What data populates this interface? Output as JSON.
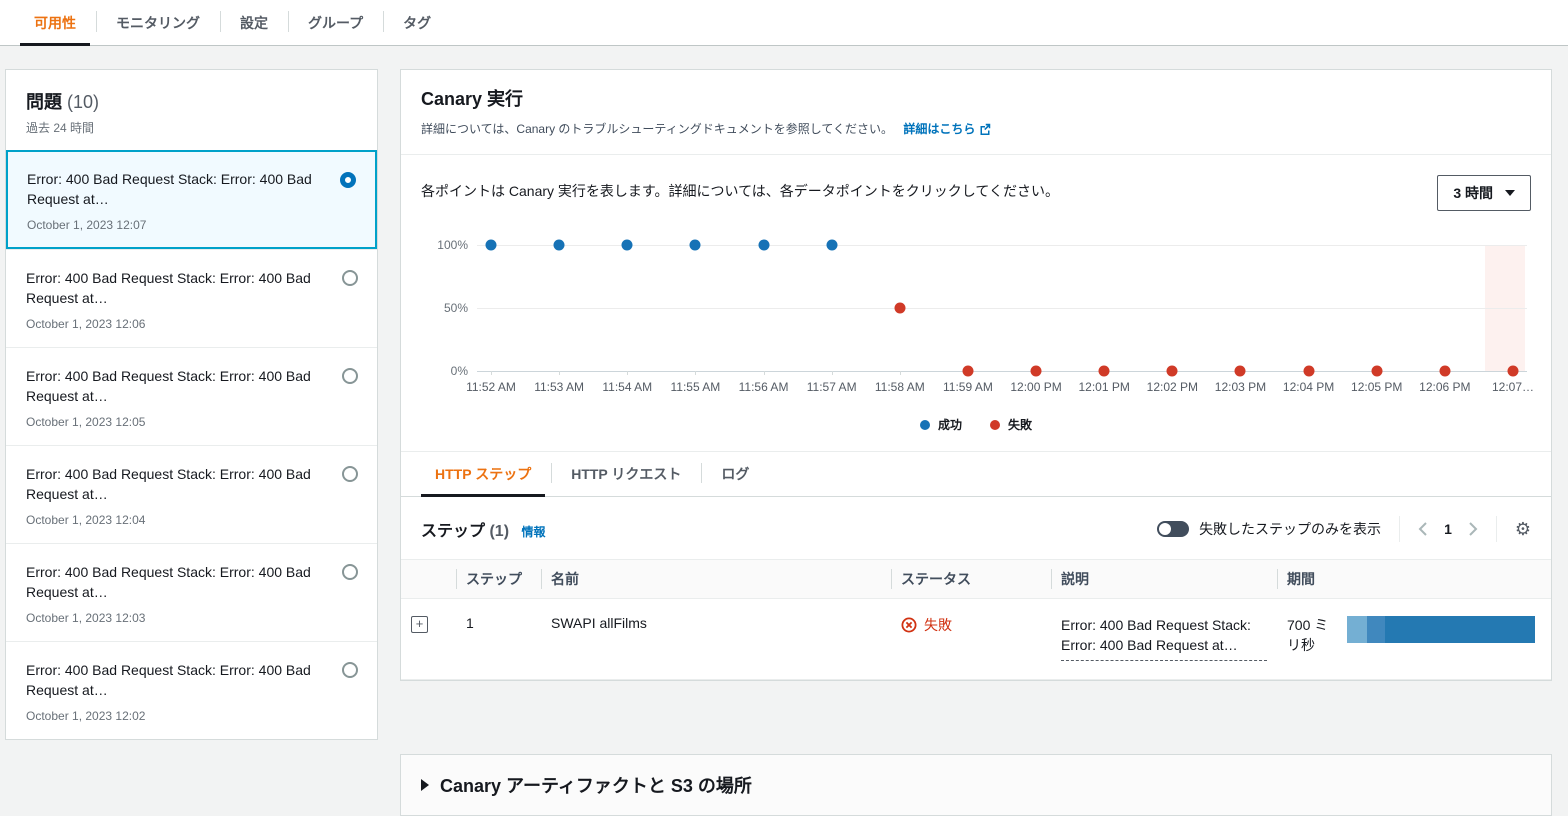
{
  "colors": {
    "accent_orange": "#ec7211",
    "link_blue": "#0073bb",
    "success_blue": "#1672b6",
    "failure_red": "#d03a27",
    "status_error_red": "#d13212",
    "selected_border": "#00a1c9",
    "selected_bg": "#f1faff",
    "duration_bar_segments": [
      "#74afd3",
      "#4088be",
      "#2479b2"
    ]
  },
  "top_tabs": {
    "items": [
      {
        "id": "availability",
        "label": "可用性",
        "active": true
      },
      {
        "id": "monitoring",
        "label": "モニタリング",
        "active": false
      },
      {
        "id": "settings",
        "label": "設定",
        "active": false
      },
      {
        "id": "groups",
        "label": "グループ",
        "active": false
      },
      {
        "id": "tags",
        "label": "タグ",
        "active": false
      }
    ]
  },
  "sidebar": {
    "title": "問題",
    "count": "(10)",
    "subtitle": "過去 24 時間",
    "items": [
      {
        "text": "Error: 400 Bad Request Stack: Error: 400 Bad Request at…",
        "timestamp": "October 1, 2023 12:07",
        "selected": true
      },
      {
        "text": "Error: 400 Bad Request Stack: Error: 400 Bad Request at…",
        "timestamp": "October 1, 2023 12:06",
        "selected": false
      },
      {
        "text": "Error: 400 Bad Request Stack: Error: 400 Bad Request at…",
        "timestamp": "October 1, 2023 12:05",
        "selected": false
      },
      {
        "text": "Error: 400 Bad Request Stack: Error: 400 Bad Request at…",
        "timestamp": "October 1, 2023 12:04",
        "selected": false
      },
      {
        "text": "Error: 400 Bad Request Stack: Error: 400 Bad Request at…",
        "timestamp": "October 1, 2023 12:03",
        "selected": false
      },
      {
        "text": "Error: 400 Bad Request Stack: Error: 400 Bad Request at…",
        "timestamp": "October 1, 2023 12:02",
        "selected": false
      }
    ]
  },
  "main": {
    "title": "Canary 実行",
    "description": "詳細については、Canary のトラブルシューティングドキュメントを参照してください。",
    "learn_more": "詳細はこちら",
    "chart_caption": "各ポイントは Canary 実行を表します。詳細については、各データポイントをクリックしてください。",
    "range_select": "3 時間",
    "tabs": [
      {
        "id": "http-steps",
        "label": "HTTP ステップ",
        "active": true
      },
      {
        "id": "http-requests",
        "label": "HTTP リクエスト",
        "active": false
      },
      {
        "id": "logs",
        "label": "ログ",
        "active": false
      }
    ],
    "steps": {
      "title": "ステップ",
      "count": "(1)",
      "info_label": "情報",
      "toggle_label": "失敗したステップのみを表示",
      "page_number": "1",
      "columns": [
        "ステップ",
        "名前",
        "ステータス",
        "説明",
        "期間"
      ],
      "rows": [
        {
          "step": "1",
          "name": "SWAPI allFilms",
          "status": "失敗",
          "description": "Error: 400 Bad Request Stack: Error: 400 Bad Request at…",
          "duration": "700 ミリ秒",
          "duration_bar_widths": [
            20,
            18,
            150
          ]
        }
      ]
    },
    "artifacts_title": "Canary アーティファクトと S3 の場所"
  },
  "chart_data": {
    "type": "scatter",
    "x": [
      "11:52 AM",
      "11:53 AM",
      "11:54 AM",
      "11:55 AM",
      "11:56 AM",
      "11:57 AM",
      "11:58 AM",
      "11:59 AM",
      "12:00 PM",
      "12:01 PM",
      "12:02 PM",
      "12:03 PM",
      "12:04 PM",
      "12:05 PM",
      "12:06 PM",
      "12:07…"
    ],
    "series": [
      {
        "name": "成功",
        "color": "#1672b6",
        "points": [
          {
            "x": 0,
            "y": 100
          },
          {
            "x": 1,
            "y": 100
          },
          {
            "x": 2,
            "y": 100
          },
          {
            "x": 3,
            "y": 100
          },
          {
            "x": 4,
            "y": 100
          },
          {
            "x": 5,
            "y": 100
          }
        ]
      },
      {
        "name": "失敗",
        "color": "#d03a27",
        "points": [
          {
            "x": 6,
            "y": 50
          },
          {
            "x": 7,
            "y": 0
          },
          {
            "x": 8,
            "y": 0
          },
          {
            "x": 9,
            "y": 0
          },
          {
            "x": 10,
            "y": 0
          },
          {
            "x": 11,
            "y": 0
          },
          {
            "x": 12,
            "y": 0
          },
          {
            "x": 13,
            "y": 0
          },
          {
            "x": 14,
            "y": 0
          },
          {
            "x": 15,
            "y": 0
          }
        ]
      }
    ],
    "y_ticks": [
      "100%",
      "50%",
      "0%"
    ],
    "ylim": [
      0,
      100
    ],
    "grid": true,
    "legend_position": "bottom-center",
    "highlight_index": 15
  }
}
